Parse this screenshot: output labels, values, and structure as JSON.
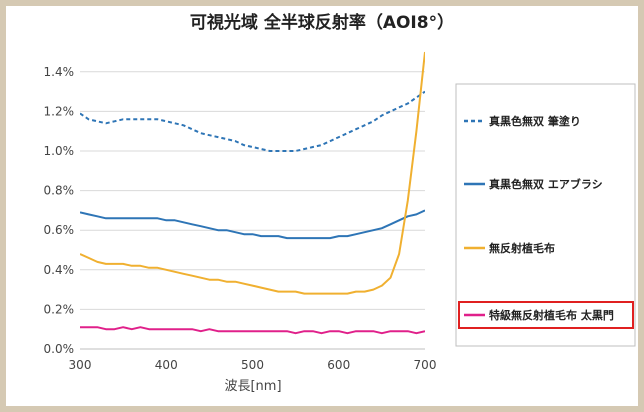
{
  "chart_data": {
    "type": "line",
    "title": "可視光域 全半球反射率（AOI8°）",
    "xlabel": "波長[nm]",
    "ylabel": "",
    "xlim": [
      300,
      700
    ],
    "ylim": [
      0,
      1.5
    ],
    "x_ticks": [
      "300",
      "400",
      "500",
      "600",
      "700"
    ],
    "y_ticks": [
      "0.0%",
      "0.2%",
      "0.4%",
      "0.6%",
      "0.8%",
      "1.0%",
      "1.2%",
      "1.4%"
    ],
    "grid": "horizontal",
    "legend_position": "right",
    "x": [
      300,
      310,
      320,
      330,
      340,
      350,
      360,
      370,
      380,
      390,
      400,
      410,
      420,
      430,
      440,
      450,
      460,
      470,
      480,
      490,
      500,
      510,
      520,
      530,
      540,
      550,
      560,
      570,
      580,
      590,
      600,
      610,
      620,
      630,
      640,
      650,
      660,
      670,
      680,
      690,
      700
    ],
    "series": [
      {
        "name": "真黒色無双 筆塗り",
        "color": "#2e75b6",
        "dash": "dashed",
        "values": [
          1.19,
          1.16,
          1.15,
          1.14,
          1.15,
          1.16,
          1.16,
          1.16,
          1.16,
          1.16,
          1.15,
          1.14,
          1.13,
          1.11,
          1.09,
          1.08,
          1.07,
          1.06,
          1.05,
          1.03,
          1.02,
          1.01,
          1.0,
          1.0,
          1.0,
          1.0,
          1.01,
          1.02,
          1.03,
          1.05,
          1.07,
          1.09,
          1.11,
          1.13,
          1.15,
          1.18,
          1.2,
          1.22,
          1.24,
          1.27,
          1.3
        ]
      },
      {
        "name": "真黒色無双 エアブラシ",
        "color": "#2e75b6",
        "dash": "solid",
        "values": [
          0.69,
          0.68,
          0.67,
          0.66,
          0.66,
          0.66,
          0.66,
          0.66,
          0.66,
          0.66,
          0.65,
          0.65,
          0.64,
          0.63,
          0.62,
          0.61,
          0.6,
          0.6,
          0.59,
          0.58,
          0.58,
          0.57,
          0.57,
          0.57,
          0.56,
          0.56,
          0.56,
          0.56,
          0.56,
          0.56,
          0.57,
          0.57,
          0.58,
          0.59,
          0.6,
          0.61,
          0.63,
          0.65,
          0.67,
          0.68,
          0.7
        ]
      },
      {
        "name": "無反射植毛布",
        "color": "#f0b030",
        "dash": "solid",
        "values": [
          0.48,
          0.46,
          0.44,
          0.43,
          0.43,
          0.43,
          0.42,
          0.42,
          0.41,
          0.41,
          0.4,
          0.39,
          0.38,
          0.37,
          0.36,
          0.35,
          0.35,
          0.34,
          0.34,
          0.33,
          0.32,
          0.31,
          0.3,
          0.29,
          0.29,
          0.29,
          0.28,
          0.28,
          0.28,
          0.28,
          0.28,
          0.28,
          0.29,
          0.29,
          0.3,
          0.32,
          0.36,
          0.48,
          0.75,
          1.1,
          1.5
        ]
      },
      {
        "name": "特級無反射植毛布 太黒門",
        "color": "#e0208a",
        "dash": "solid",
        "values": [
          0.11,
          0.11,
          0.11,
          0.1,
          0.1,
          0.11,
          0.1,
          0.11,
          0.1,
          0.1,
          0.1,
          0.1,
          0.1,
          0.1,
          0.09,
          0.1,
          0.09,
          0.09,
          0.09,
          0.09,
          0.09,
          0.09,
          0.09,
          0.09,
          0.09,
          0.08,
          0.09,
          0.09,
          0.08,
          0.09,
          0.09,
          0.08,
          0.09,
          0.09,
          0.09,
          0.08,
          0.09,
          0.09,
          0.09,
          0.08,
          0.09
        ]
      }
    ],
    "highlighted_legend_entry": "特級無反射植毛布 太黒門",
    "highlight_color": "#e02020"
  }
}
